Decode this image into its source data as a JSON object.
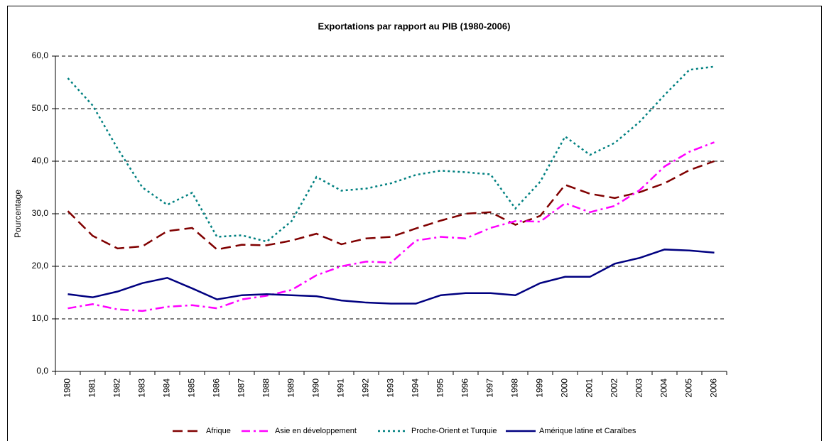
{
  "chart_data": {
    "type": "line",
    "title": "Exportations par rapport au PIB (1980-2006)",
    "y_label": "Pourcentage",
    "categories": [
      "1980",
      "1981",
      "1982",
      "1983",
      "1984",
      "1985",
      "1986",
      "1987",
      "1988",
      "1989",
      "1990",
      "1991",
      "1992",
      "1993",
      "1994",
      "1995",
      "1996",
      "1997",
      "1998",
      "1999",
      "2000",
      "2001",
      "2002",
      "2003",
      "2004",
      "2005",
      "2006"
    ],
    "series": [
      {
        "name": "Afrique",
        "color": "#800000",
        "dash": "14 7",
        "values": [
          30.5,
          25.8,
          23.4,
          23.8,
          26.7,
          27.3,
          23.2,
          24.1,
          24.0,
          24.9,
          26.2,
          24.2,
          25.3,
          25.6,
          27.2,
          28.7,
          30.0,
          30.3,
          27.9,
          29.6,
          35.5,
          33.8,
          33.0,
          34.1,
          35.8,
          38.3,
          40.0
        ]
      },
      {
        "name": "Asie en développement",
        "color": "#ff00ff",
        "dash": "12 5 3 5",
        "values": [
          12.0,
          12.8,
          11.8,
          11.5,
          12.3,
          12.6,
          12.0,
          13.7,
          14.4,
          15.5,
          18.3,
          20.0,
          20.9,
          20.7,
          24.9,
          25.6,
          25.3,
          27.3,
          28.6,
          28.5,
          32.0,
          30.3,
          31.5,
          34.5,
          39.0,
          41.8,
          43.6
        ]
      },
      {
        "name": "Proche-Orient et Turquie",
        "color": "#008080",
        "dash": "3 4",
        "values": [
          55.8,
          50.6,
          42.4,
          35.0,
          31.7,
          34.0,
          25.6,
          25.9,
          24.7,
          28.6,
          37.0,
          34.4,
          34.8,
          35.8,
          37.4,
          38.2,
          37.9,
          37.5,
          31.0,
          36.1,
          44.7,
          41.2,
          43.5,
          47.5,
          52.6,
          57.4,
          58.0
        ]
      },
      {
        "name": "Amérique latine et Caraïbes",
        "color": "#000080",
        "dash": "",
        "values": [
          14.7,
          14.1,
          15.2,
          16.8,
          17.8,
          15.8,
          13.7,
          14.5,
          14.7,
          14.5,
          14.3,
          13.5,
          13.1,
          12.9,
          12.9,
          14.5,
          14.9,
          14.9,
          14.5,
          16.8,
          18.0,
          18.0,
          20.5,
          21.6,
          23.2,
          23.0,
          22.6
        ]
      }
    ],
    "ylim": [
      0,
      60
    ],
    "yticks": [
      {
        "value": 0,
        "label": "0,0"
      },
      {
        "value": 10,
        "label": "10,0"
      },
      {
        "value": 20,
        "label": "20,0"
      },
      {
        "value": 30,
        "label": "30,0"
      },
      {
        "value": 40,
        "label": "40,0"
      },
      {
        "value": 50,
        "label": "50,0"
      },
      {
        "value": 60,
        "label": "60,0"
      }
    ],
    "grid": true,
    "legend": "bottom"
  }
}
